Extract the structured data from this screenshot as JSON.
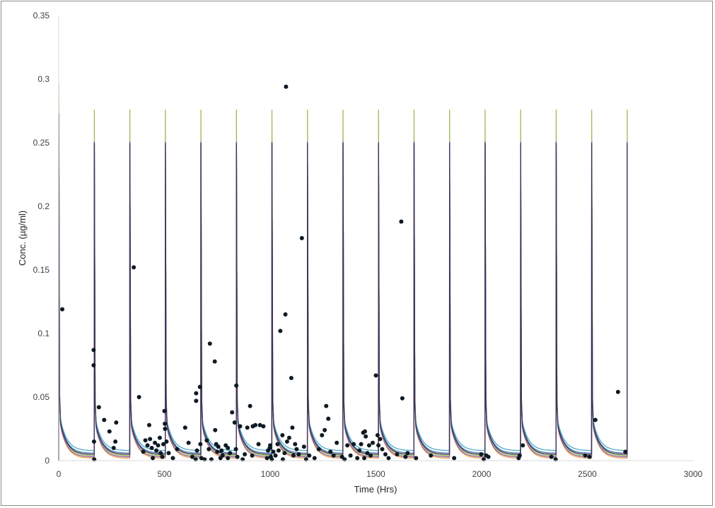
{
  "chart_data": {
    "type": "line",
    "title": "",
    "xlabel": "Time (Hrs)",
    "ylabel": "Conc. (µg/ml)",
    "xlim": [
      0,
      3000
    ],
    "ylim": [
      0,
      0.35
    ],
    "x_ticks": [
      0,
      500,
      1000,
      1500,
      2000,
      2500,
      3000
    ],
    "y_ticks": [
      0,
      0.05,
      0.1,
      0.15,
      0.2,
      0.25,
      0.3,
      0.35
    ],
    "y_tick_labels": [
      "0",
      "0.05",
      "0.1",
      "0.15",
      "0.2",
      "0.25",
      "0.3",
      "0.35"
    ],
    "x_tick_labels": [
      "0",
      "500",
      "1000",
      "1500",
      "2000",
      "2500",
      "3000"
    ],
    "grid": false,
    "dose_times": [
      0,
      168,
      336,
      504,
      672,
      840,
      1008,
      1176,
      1344,
      1512,
      1680,
      1848,
      2016,
      2184,
      2352,
      2520,
      2688
    ],
    "series_colors": [
      "#4f81bd",
      "#4bacc6",
      "#f79646",
      "#8064a2",
      "#9bbb59",
      "#403152"
    ],
    "series": [
      {
        "color": "#9bbb59",
        "first_peak": 0.297,
        "peak": 0.276,
        "trough": 0.004
      },
      {
        "color": "#f79646",
        "first_peak": 0.273,
        "peak": 0.252,
        "trough": 0.002
      },
      {
        "color": "#4f81bd",
        "first_peak": 0.273,
        "peak": 0.251,
        "trough": 0.006
      },
      {
        "color": "#4bacc6",
        "first_peak": 0.272,
        "peak": 0.251,
        "trough": 0.008
      },
      {
        "color": "#8064a2",
        "first_peak": 0.273,
        "peak": 0.25,
        "trough": 0.003
      },
      {
        "color": "#403152",
        "first_peak": 0.273,
        "peak": 0.25,
        "trough": 0.005
      }
    ],
    "observed_points": [
      [
        17,
        0.119
      ],
      [
        165,
        0.087
      ],
      [
        165,
        0.075
      ],
      [
        167,
        0.015
      ],
      [
        168,
        0.001
      ],
      [
        190,
        0.042
      ],
      [
        215,
        0.032
      ],
      [
        240,
        0.023
      ],
      [
        260,
        0.01
      ],
      [
        268,
        0.015
      ],
      [
        272,
        0.03
      ],
      [
        355,
        0.152
      ],
      [
        380,
        0.05
      ],
      [
        400,
        0.007
      ],
      [
        410,
        0.016
      ],
      [
        420,
        0.012
      ],
      [
        428,
        0.028
      ],
      [
        432,
        0.017
      ],
      [
        440,
        0.01
      ],
      [
        445,
        0.002
      ],
      [
        455,
        0.014
      ],
      [
        462,
        0.008
      ],
      [
        470,
        0.012
      ],
      [
        478,
        0.018
      ],
      [
        482,
        0.006
      ],
      [
        490,
        0.003
      ],
      [
        495,
        0.013
      ],
      [
        500,
        0.039
      ],
      [
        502,
        0.029
      ],
      [
        503,
        0.025
      ],
      [
        510,
        0.015
      ],
      [
        520,
        0.006
      ],
      [
        540,
        0.002
      ],
      [
        560,
        0.009
      ],
      [
        598,
        0.026
      ],
      [
        614,
        0.014
      ],
      [
        632,
        0.003
      ],
      [
        648,
        0.001
      ],
      [
        650,
        0.053
      ],
      [
        650,
        0.047
      ],
      [
        654,
        0.008
      ],
      [
        668,
        0.058
      ],
      [
        670,
        0.013
      ],
      [
        675,
        0.002
      ],
      [
        690,
        0.001
      ],
      [
        700,
        0.016
      ],
      [
        710,
        0.009
      ],
      [
        715,
        0.092
      ],
      [
        722,
        0.001
      ],
      [
        738,
        0.078
      ],
      [
        740,
        0.024
      ],
      [
        745,
        0.013
      ],
      [
        750,
        0.007
      ],
      [
        755,
        0.011
      ],
      [
        765,
        0.002
      ],
      [
        770,
        0.008
      ],
      [
        775,
        0.004
      ],
      [
        790,
        0.012
      ],
      [
        800,
        0.002
      ],
      [
        800,
        0.01
      ],
      [
        810,
        0.006
      ],
      [
        820,
        0.038
      ],
      [
        832,
        0.03
      ],
      [
        838,
        0.009
      ],
      [
        840,
        0.059
      ],
      [
        845,
        0.003
      ],
      [
        858,
        0.027
      ],
      [
        870,
        0.001
      ],
      [
        880,
        0.005
      ],
      [
        892,
        0.026
      ],
      [
        905,
        0.043
      ],
      [
        915,
        0.004
      ],
      [
        918,
        0.027
      ],
      [
        930,
        0.028
      ],
      [
        945,
        0.013
      ],
      [
        952,
        0.028
      ],
      [
        968,
        0.027
      ],
      [
        985,
        0.002
      ],
      [
        990,
        0.008
      ],
      [
        998,
        0.01
      ],
      [
        1000,
        0.012
      ],
      [
        1003,
        0.003
      ],
      [
        1008,
        0.001
      ],
      [
        1015,
        0.007
      ],
      [
        1025,
        0.004
      ],
      [
        1035,
        0.013
      ],
      [
        1040,
        0.008
      ],
      [
        1048,
        0.102
      ],
      [
        1058,
        0.02
      ],
      [
        1060,
        0.001
      ],
      [
        1068,
        0.006
      ],
      [
        1072,
        0.115
      ],
      [
        1075,
        0.294
      ],
      [
        1080,
        0.015
      ],
      [
        1090,
        0.018
      ],
      [
        1100,
        0.065
      ],
      [
        1105,
        0.026
      ],
      [
        1110,
        0.004
      ],
      [
        1118,
        0.013
      ],
      [
        1125,
        0.009
      ],
      [
        1135,
        0.005
      ],
      [
        1150,
        0.175
      ],
      [
        1160,
        0.011
      ],
      [
        1170,
        0.001
      ],
      [
        1185,
        0.004
      ],
      [
        1210,
        0.002
      ],
      [
        1230,
        0.009
      ],
      [
        1245,
        0.02
      ],
      [
        1258,
        0.024
      ],
      [
        1265,
        0.043
      ],
      [
        1275,
        0.033
      ],
      [
        1285,
        0.007
      ],
      [
        1300,
        0.004
      ],
      [
        1315,
        0.014
      ],
      [
        1340,
        0.003
      ],
      [
        1352,
        0.001
      ],
      [
        1365,
        0.012
      ],
      [
        1380,
        0.004
      ],
      [
        1395,
        0.013
      ],
      [
        1412,
        0.002
      ],
      [
        1422,
        0.008
      ],
      [
        1430,
        0.013
      ],
      [
        1440,
        0.022
      ],
      [
        1445,
        0.002
      ],
      [
        1448,
        0.023
      ],
      [
        1452,
        0.019
      ],
      [
        1460,
        0.006
      ],
      [
        1468,
        0.012
      ],
      [
        1475,
        0.004
      ],
      [
        1485,
        0.014
      ],
      [
        1500,
        0.067
      ],
      [
        1508,
        0.02
      ],
      [
        1512,
        0.012
      ],
      [
        1520,
        0.017
      ],
      [
        1530,
        0.009
      ],
      [
        1545,
        0.005
      ],
      [
        1560,
        0.002
      ],
      [
        1600,
        0.005
      ],
      [
        1620,
        0.188
      ],
      [
        1625,
        0.049
      ],
      [
        1640,
        0.003
      ],
      [
        1650,
        0.006
      ],
      [
        1690,
        0.002
      ],
      [
        1760,
        0.004
      ],
      [
        1870,
        0.002
      ],
      [
        1998,
        0.005
      ],
      [
        2010,
        0.001
      ],
      [
        2022,
        0.004
      ],
      [
        2032,
        0.003
      ],
      [
        2175,
        0.002
      ],
      [
        2180,
        0.004
      ],
      [
        2195,
        0.012
      ],
      [
        2330,
        0.003
      ],
      [
        2350,
        0.001
      ],
      [
        2490,
        0.004
      ],
      [
        2510,
        0.003
      ],
      [
        2538,
        0.032
      ],
      [
        2645,
        0.054
      ],
      [
        2680,
        0.007
      ]
    ]
  }
}
